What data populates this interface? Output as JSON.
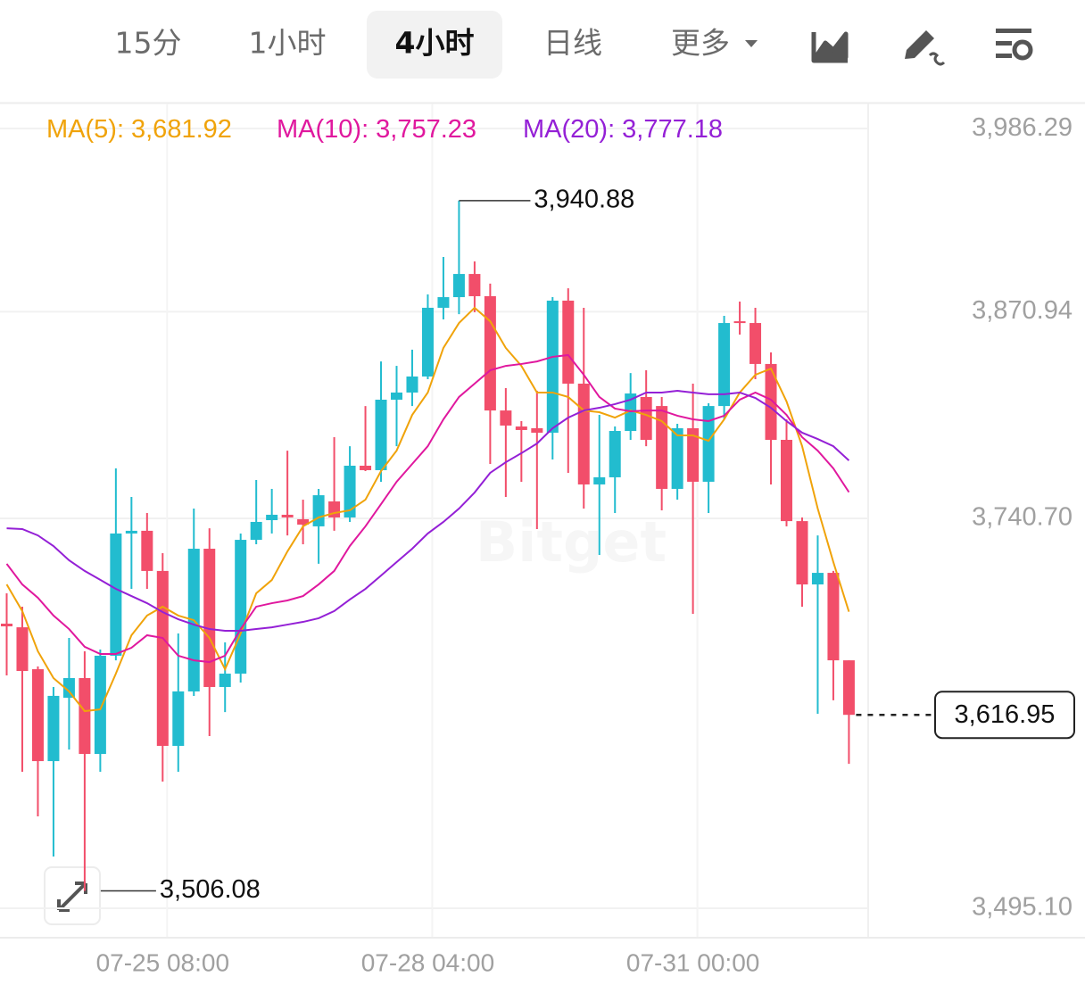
{
  "toolbar": {
    "tabs": [
      "15分",
      "1小时",
      "4小时",
      "日线",
      "更多"
    ],
    "active": 2
  },
  "chart_data": {
    "type": "candlestick",
    "watermark": "Bitget",
    "categories": [
      null,
      null,
      null,
      null,
      null,
      null,
      null,
      null,
      null,
      null,
      "07-25 08:00",
      null,
      null,
      null,
      null,
      null,
      null,
      null,
      null,
      null,
      null,
      null,
      null,
      null,
      null,
      null,
      null,
      "07-28 04:00",
      null,
      null,
      null,
      null,
      null,
      null,
      null,
      null,
      null,
      null,
      null,
      null,
      null,
      null,
      null,
      null,
      "07-31 00:00",
      null,
      null,
      null,
      null,
      null,
      null,
      null,
      null,
      null,
      null
    ],
    "open": [
      3674.4,
      3672.1,
      3645.7,
      3587.8,
      3627.7,
      3640.1,
      3592.3,
      3654.2,
      3731.2,
      3732.9,
      3707.6,
      3597.4,
      3631.7,
      3721.6,
      3634.5,
      3642.9,
      3727.2,
      3739.6,
      3743.0,
      3740.2,
      3735.7,
      3751.4,
      3741.3,
      3773.9,
      3771.1,
      3815.5,
      3820.0,
      3830.1,
      3873.4,
      3880.1,
      3894.7,
      3880.7,
      3808.7,
      3798.6,
      3797.5,
      3794.7,
      3877.9,
      3825.6,
      3762.1,
      3766.6,
      3795.8,
      3817.2,
      3811.5,
      3759.3,
      3797.5,
      3763.8,
      3811.5,
      3864.9,
      3863.8,
      3838.0,
      3790.2,
      3739.0,
      3699.1,
      3706.4,
      3651.3
    ],
    "high": [
      3693.5,
      3685.1,
      3647.4,
      3634.5,
      3665.4,
      3657.0,
      3658.1,
      3772.2,
      3754.2,
      3744.1,
      3718.8,
      3668.2,
      3746.9,
      3734.5,
      3662.6,
      3731.2,
      3764.9,
      3759.3,
      3783.4,
      3752.5,
      3759.3,
      3791.9,
      3786.2,
      3811.5,
      3839.6,
      3836.8,
      3847.0,
      3881.8,
      3905.4,
      3940.88,
      3902.6,
      3888.6,
      3822.8,
      3802.0,
      3821.1,
      3880.1,
      3885.7,
      3873.4,
      3805.9,
      3798.6,
      3832.3,
      3834.0,
      3817.2,
      3800.3,
      3825.6,
      3813.2,
      3868.3,
      3877.3,
      3873.4,
      3845.3,
      3803.1,
      3741.3,
      3730.0,
      3707.6,
      3651.3
    ],
    "low": [
      3641.8,
      3581.1,
      3553.0,
      3527.7,
      3595.1,
      3506.08,
      3581.1,
      3651.3,
      3696.3,
      3696.3,
      3574.9,
      3581.1,
      3628.9,
      3603.6,
      3618.7,
      3637.3,
      3724.4,
      3731.2,
      3730.0,
      3724.4,
      3712.1,
      3732.9,
      3738.5,
      3770.5,
      3763.8,
      3786.2,
      3811.5,
      3828.4,
      3866.1,
      3869.4,
      3870.6,
      3775.0,
      3754.2,
      3763.8,
      3734.0,
      3777.8,
      3769.4,
      3746.9,
      3717.7,
      3744.1,
      3790.2,
      3786.2,
      3745.8,
      3752.5,
      3680.6,
      3744.1,
      3803.1,
      3856.5,
      3828.4,
      3762.1,
      3735.7,
      3685.1,
      3617.6,
      3626.1,
      3586.1
    ],
    "close": [
      3672.7,
      3644.6,
      3587.8,
      3628.9,
      3640.1,
      3592.3,
      3654.2,
      3731.2,
      3732.9,
      3707.6,
      3597.4,
      3631.7,
      3721.6,
      3634.5,
      3642.9,
      3727.2,
      3738.5,
      3743.0,
      3741.3,
      3736.8,
      3755.3,
      3741.3,
      3773.9,
      3771.1,
      3815.5,
      3820.0,
      3830.1,
      3873.4,
      3880.1,
      3894.7,
      3880.7,
      3808.7,
      3799.2,
      3796.4,
      3794.7,
      3877.9,
      3825.6,
      3762.1,
      3766.6,
      3795.8,
      3819.4,
      3790.2,
      3759.3,
      3797.5,
      3763.8,
      3811.5,
      3863.8,
      3863.8,
      3838.0,
      3790.2,
      3739.0,
      3699.1,
      3706.4,
      3651.3,
      3616.95
    ],
    "high_labels": [
      null,
      null,
      null,
      null,
      null,
      null,
      null,
      null,
      null,
      null,
      null,
      null,
      null,
      null,
      null,
      null,
      null,
      null,
      null,
      null,
      null,
      null,
      null,
      null,
      null,
      null,
      null,
      null,
      null,
      "3,940.88",
      null,
      null,
      null,
      null,
      null,
      null,
      null,
      null,
      null,
      null,
      null,
      null,
      null,
      null,
      null,
      null,
      null,
      null,
      null,
      null,
      null,
      null,
      null,
      null,
      null
    ],
    "low_labels": [
      null,
      null,
      null,
      null,
      null,
      "3,506.08",
      null,
      null,
      null,
      null,
      null,
      null,
      null,
      null,
      null,
      null,
      null,
      null,
      null,
      null,
      null,
      null,
      null,
      null,
      null,
      null,
      null,
      null,
      null,
      null,
      null,
      null,
      null,
      null,
      null,
      null,
      null,
      null,
      null,
      null,
      null,
      null,
      null,
      null,
      null,
      null,
      null,
      null,
      null,
      null,
      null,
      null,
      null,
      null,
      null
    ],
    "close_labels": [
      null,
      null,
      null,
      null,
      null,
      null,
      null,
      null,
      null,
      null,
      null,
      null,
      null,
      null,
      null,
      null,
      null,
      null,
      null,
      null,
      null,
      null,
      null,
      null,
      null,
      null,
      null,
      null,
      null,
      null,
      null,
      null,
      null,
      null,
      null,
      null,
      null,
      null,
      null,
      null,
      null,
      null,
      null,
      null,
      null,
      null,
      null,
      null,
      null,
      null,
      null,
      null,
      null,
      null,
      "3,616.95"
    ],
    "up_color": "#22bccf",
    "down_color": "#f24e6a",
    "series": [
      {
        "name": "MA(5):",
        "color": "#f0a30a",
        "values": [
          3699.1,
          3682.3,
          3657.0,
          3640.1,
          3631.7,
          3619.3,
          3620.4,
          3642.9,
          3667.1,
          3679.5,
          3685.1,
          3679.5,
          3676.6,
          3665.4,
          3645.7,
          3668.2,
          3693.5,
          3701.9,
          3719.9,
          3735.7,
          3741.3,
          3744.1,
          3745.8,
          3752.5,
          3770.5,
          3783.4,
          3805.9,
          3820.0,
          3848.1,
          3863.8,
          3873.4,
          3864.9,
          3848.1,
          3836.8,
          3820.0,
          3820.0,
          3817.2,
          3808.7,
          3807.6,
          3804.2,
          3808.7,
          3805.9,
          3802.0,
          3793.0,
          3793.0,
          3789.6,
          3803.1,
          3820.0,
          3831.2,
          3835.1,
          3814.4,
          3786.2,
          3746.9,
          3713.2,
          3681.92
        ],
        "value_labels": [
          null,
          null,
          null,
          null,
          null,
          null,
          null,
          null,
          null,
          null,
          null,
          null,
          null,
          null,
          null,
          null,
          null,
          null,
          null,
          null,
          null,
          null,
          null,
          null,
          null,
          null,
          null,
          null,
          null,
          null,
          null,
          null,
          null,
          null,
          null,
          null,
          null,
          null,
          null,
          null,
          null,
          null,
          null,
          null,
          null,
          null,
          null,
          null,
          null,
          null,
          null,
          null,
          null,
          null,
          "3,681.92"
        ]
      },
      {
        "name": "MA(10):",
        "color": "#e0189e",
        "values": [
          3712.1,
          3699.1,
          3690.7,
          3679.5,
          3671.0,
          3659.8,
          3655.3,
          3655.3,
          3659.2,
          3667.1,
          3665.4,
          3654.2,
          3651.3,
          3650.2,
          3654.2,
          3671.0,
          3685.1,
          3687.3,
          3689.0,
          3691.8,
          3699.1,
          3707.6,
          3723.3,
          3735.7,
          3749.7,
          3763.8,
          3775.0,
          3786.2,
          3803.1,
          3817.2,
          3825.6,
          3834.0,
          3836.8,
          3838.0,
          3839.6,
          3842.5,
          3843.6,
          3831.2,
          3817.2,
          3809.9,
          3808.2,
          3808.7,
          3808.7,
          3805.4,
          3803.1,
          3802.0,
          3805.4,
          3815.5,
          3820.0,
          3815.5,
          3805.9,
          3791.9,
          3783.4,
          3772.2,
          3757.23
        ],
        "value_labels": [
          null,
          null,
          null,
          null,
          null,
          null,
          null,
          null,
          null,
          null,
          null,
          null,
          null,
          null,
          null,
          null,
          null,
          null,
          null,
          null,
          null,
          null,
          null,
          null,
          null,
          null,
          null,
          null,
          null,
          null,
          null,
          null,
          null,
          null,
          null,
          null,
          null,
          null,
          null,
          null,
          null,
          null,
          null,
          null,
          null,
          null,
          null,
          null,
          null,
          null,
          null,
          null,
          null,
          null,
          "3,757.23"
        ]
      },
      {
        "name": "MA(20):",
        "color": "#9420d6",
        "values": [
          3734.5,
          3734.0,
          3730.0,
          3723.3,
          3714.3,
          3707.6,
          3702.0,
          3696.3,
          3691.8,
          3687.3,
          3681.7,
          3677.2,
          3673.8,
          3671.0,
          3669.9,
          3669.9,
          3671.0,
          3672.1,
          3673.8,
          3675.5,
          3677.8,
          3682.3,
          3689.6,
          3696.3,
          3704.7,
          3713.2,
          3721.6,
          3731.2,
          3738.5,
          3746.9,
          3757.0,
          3769.4,
          3776.1,
          3781.8,
          3787.9,
          3797.5,
          3804.2,
          3808.7,
          3810.4,
          3812.7,
          3815.5,
          3820.0,
          3820.0,
          3821.1,
          3820.0,
          3818.9,
          3818.9,
          3820.0,
          3816.6,
          3810.4,
          3802.0,
          3794.7,
          3790.7,
          3786.2,
          3777.18
        ],
        "value_labels": [
          null,
          null,
          null,
          null,
          null,
          null,
          null,
          null,
          null,
          null,
          null,
          null,
          null,
          null,
          null,
          null,
          null,
          null,
          null,
          null,
          null,
          null,
          null,
          null,
          null,
          null,
          null,
          null,
          null,
          null,
          null,
          null,
          null,
          null,
          null,
          null,
          null,
          null,
          null,
          null,
          null,
          null,
          null,
          null,
          null,
          null,
          null,
          null,
          null,
          null,
          null,
          null,
          null,
          null,
          "3,777.18"
        ]
      }
    ],
    "ylim": [
      3477.1,
      4002.1
    ],
    "yticks": [
      {
        "value": 3495.1,
        "label": "3,495.10"
      },
      {
        "value": 3740.7,
        "label": "3,740.70"
      },
      {
        "value": 3870.94,
        "label": "3,870.94"
      },
      {
        "value": 3986.29,
        "label": "3,986.29"
      }
    ],
    "grid": true
  }
}
